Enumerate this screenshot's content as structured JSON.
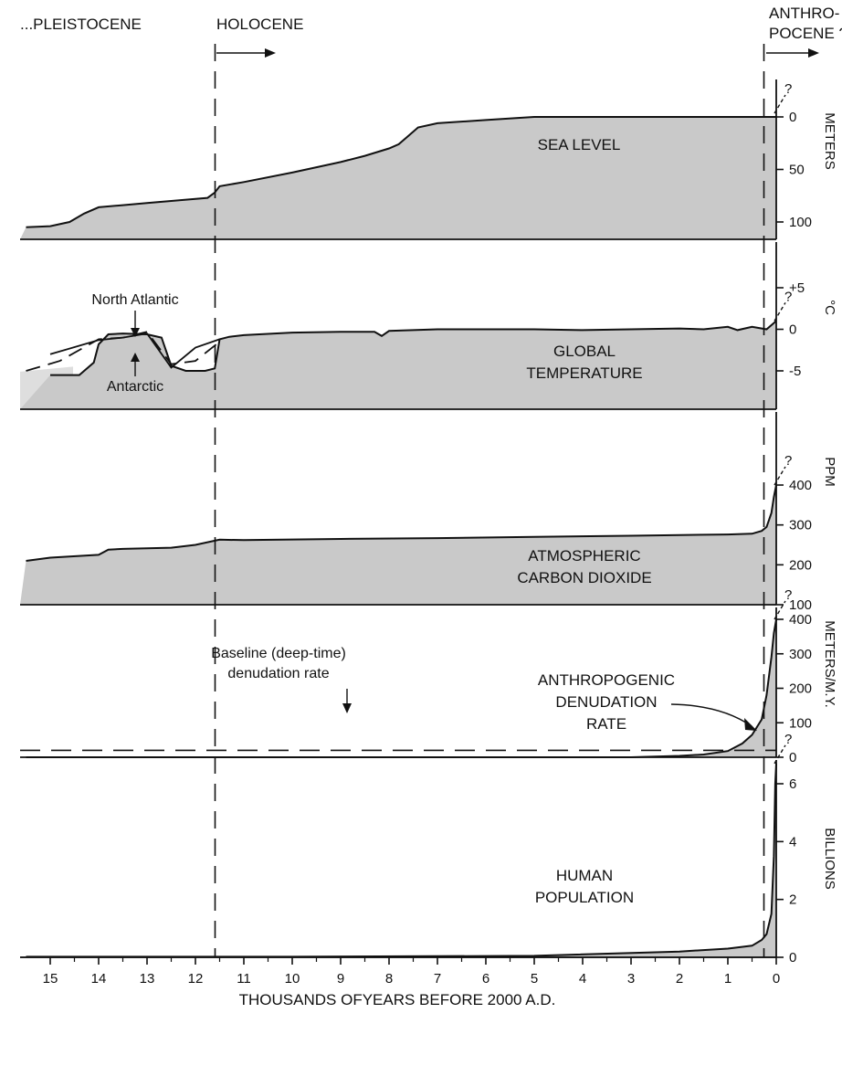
{
  "chart_data": {
    "type": "area",
    "epochs": {
      "left": "...PLEISTOCENE",
      "middle": "HOLOCENE",
      "right_line1": "ANTHRO-",
      "right_line2": "POCENE ?"
    },
    "question_mark": "?",
    "xlabel": "THOUSANDS OFYEARS BEFORE 2000 A.D.",
    "x_ticks": [
      "15",
      "14",
      "13",
      "12",
      "11",
      "10",
      "9",
      "8",
      "7",
      "6",
      "5",
      "4",
      "3",
      "2",
      "1",
      "0"
    ],
    "xlim": [
      15.5,
      0
    ],
    "markers": {
      "holocene_start_kyr": 11.5,
      "anthropocene_start_kyr": 0.2
    },
    "panels": [
      {
        "id": "sea-level",
        "title_lines": [
          "SEA LEVEL"
        ],
        "unit": "METERS",
        "ylim": [
          0,
          125
        ],
        "inverted": true,
        "ticks": [
          "0",
          "50",
          "100"
        ],
        "tick_values": [
          0,
          50,
          100
        ],
        "series": [
          {
            "x": [
              15.5,
              15.0,
              14.6,
              14.3,
              14.0,
              13.5,
              13.0,
              12.5,
              12.0,
              11.75,
              11.6,
              11.5,
              11.0,
              10.0,
              9.0,
              8.5,
              8.0,
              7.8,
              7.6,
              7.4,
              7.0,
              6.0,
              5.0,
              4.5,
              4.0,
              3.0,
              2.0,
              1.0,
              0.0
            ],
            "y": [
              105,
              104,
              100,
              92,
              86,
              84,
              82,
              80,
              78,
              77,
              72,
              66,
              62,
              53,
              43,
              37,
              30,
              26,
              18,
              10,
              6,
              3,
              0,
              0,
              0,
              0,
              0,
              0,
              0
            ]
          }
        ],
        "annotations": []
      },
      {
        "id": "global-temperature",
        "title_lines": [
          "GLOBAL",
          "TEMPERATURE"
        ],
        "unit": "°C",
        "ylim": [
          -10,
          9
        ],
        "ticks": [
          "+5",
          "0",
          "-5"
        ],
        "tick_values": [
          5,
          0,
          -5
        ],
        "series": [
          {
            "name": "",
            "x": [
              15.0,
              14.4,
              14.1,
              14.0,
              13.8,
              13.5,
              13.0,
              12.7,
              12.5,
              12.2,
              11.8,
              11.6,
              11.5,
              11.3,
              11.0,
              10.0,
              9.0,
              8.3,
              8.15,
              8.0,
              7.0,
              6.0,
              5.0,
              4.0,
              3.0,
              2.0,
              1.5,
              1.0,
              0.8,
              0.5,
              0.2,
              0.0
            ],
            "y": [
              -5.5,
              -5.5,
              -4.0,
              -1.8,
              -0.6,
              -0.5,
              -0.6,
              -1.0,
              -4.4,
              -5.0,
              -5.0,
              -4.7,
              -1.2,
              -0.9,
              -0.7,
              -0.4,
              -0.3,
              -0.3,
              -0.8,
              -0.2,
              0,
              0,
              0,
              -0.1,
              0,
              0.1,
              0,
              0.3,
              -0.1,
              0.3,
              0,
              1.0
            ]
          },
          {
            "name": "North Atlantic",
            "x": [
              15.5,
              14.8,
              14.0,
              13.5,
              13.0,
              12.5,
              12.0,
              11.5
            ],
            "y": [
              -5.0,
              -3.8,
              -1.2,
              -1.0,
              -0.3,
              -4.2,
              -3.8,
              -1.5
            ]
          },
          {
            "name": "Antarctic",
            "x": [
              15.0,
              14.0,
              13.5,
              13.0,
              12.5,
              12.0,
              11.5
            ],
            "y": [
              -3.0,
              -1.3,
              -1.0,
              -0.5,
              -4.6,
              -2.2,
              -1.2
            ]
          }
        ],
        "annotations": [
          "North Atlantic",
          "Antarctic"
        ]
      },
      {
        "id": "carbon-dioxide",
        "title_lines": [
          "ATMOSPHERIC",
          "CARBON DIOXIDE"
        ],
        "unit": "PPM",
        "ylim": [
          100,
          480
        ],
        "ticks": [
          "400",
          "300",
          "200",
          "100"
        ],
        "tick_values": [
          400,
          300,
          200,
          100
        ],
        "series": [
          {
            "x": [
              15.5,
              15.0,
              14.0,
              13.8,
              13.5,
              12.5,
              12.0,
              11.5,
              11.0,
              9.0,
              7.0,
              5.0,
              3.0,
              1.0,
              0.5,
              0.3,
              0.2,
              0.1,
              0.05,
              0.0
            ],
            "y": [
              210,
              218,
              225,
              238,
              240,
              243,
              250,
              263,
              262,
              265,
              267,
              270,
              273,
              276,
              278,
              285,
              295,
              330,
              370,
              400
            ]
          }
        ],
        "annotations": []
      },
      {
        "id": "denudation-rate",
        "title_lines": [
          "ANTHROPOGENIC",
          "DENUDATION",
          "RATE"
        ],
        "baseline_label": [
          "Baseline (deep-time)",
          "denudation rate"
        ],
        "unit": "METERS/M.Y.",
        "ylim": [
          0,
          420
        ],
        "ticks": [
          "400",
          "300",
          "200",
          "100",
          "0"
        ],
        "tick_values": [
          400,
          300,
          200,
          100,
          0
        ],
        "baseline_value": 20,
        "series": [
          {
            "x": [
              15.5,
              5.0,
              3.0,
              2.0,
              1.5,
              1.0,
              0.7,
              0.5,
              0.3,
              0.2,
              0.1,
              0.05,
              0.0
            ],
            "y": [
              0,
              0,
              0,
              4,
              8,
              18,
              40,
              65,
              110,
              180,
              290,
              360,
              400
            ]
          }
        ],
        "annotations": []
      },
      {
        "id": "human-population",
        "title_lines": [
          "HUMAN",
          "POPULATION"
        ],
        "unit": "BILLIONS",
        "ylim": [
          0,
          8
        ],
        "ticks": [
          "6",
          "4",
          "2",
          "0"
        ],
        "tick_values": [
          6,
          4,
          2,
          0
        ],
        "series": [
          {
            "x": [
              15.5,
              10.0,
              5.0,
              2.0,
              1.0,
              0.5,
              0.3,
              0.2,
              0.1,
              0.05,
              0.02,
              0.0
            ],
            "y": [
              0.02,
              0.02,
              0.05,
              0.2,
              0.3,
              0.4,
              0.6,
              0.8,
              1.5,
              3.5,
              6.0,
              6.7
            ]
          }
        ],
        "annotations": []
      }
    ]
  }
}
